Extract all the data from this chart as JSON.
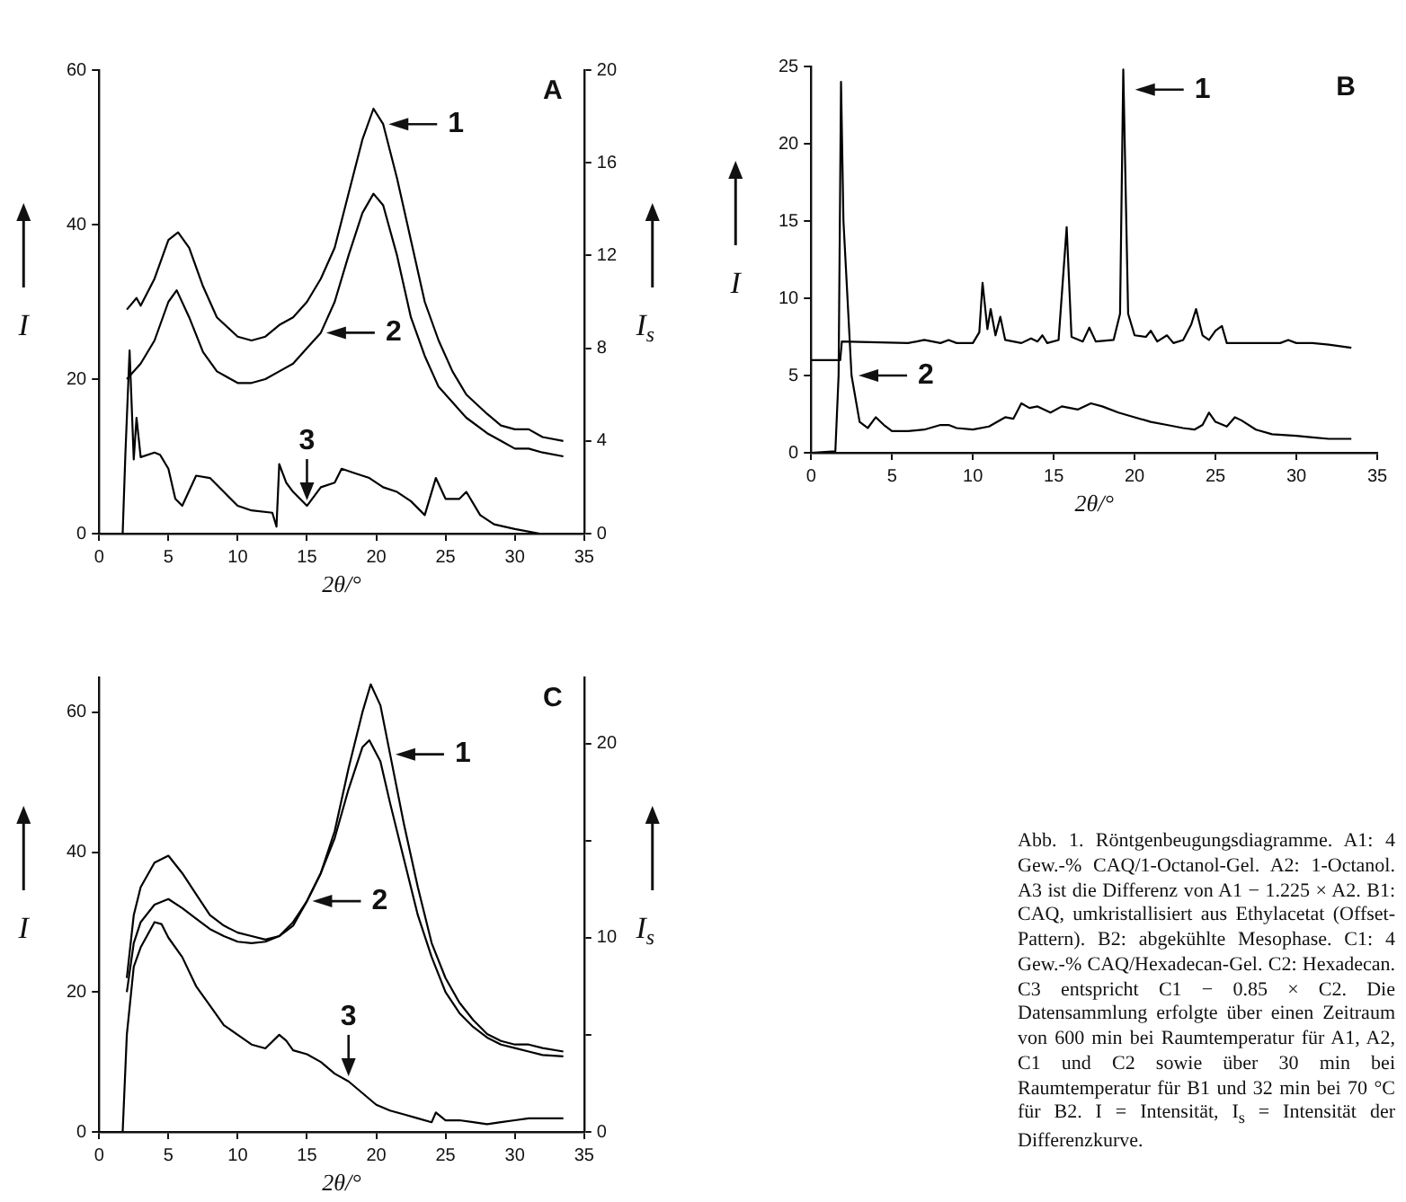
{
  "chart_data": [
    {
      "type": "line",
      "xlabel": "2θ/°",
      "ylabel": "I",
      "y2label": "I$_{s}$",
      "marker": "none",
      "xlim": [
        0,
        35
      ],
      "xticks": [
        0,
        5,
        10,
        15,
        20,
        25,
        30,
        35
      ],
      "ylim": [
        0,
        60
      ],
      "yticks": [
        0,
        20,
        40,
        60
      ],
      "y2lim": [
        0,
        20
      ],
      "y2ticks": [
        0,
        4,
        8,
        12,
        16,
        20
      ],
      "annotations": [
        "A",
        {
          "text": "1",
          "x": 20.5,
          "y": 53
        },
        {
          "text": "2",
          "x": 16,
          "y": 26
        },
        {
          "text": "3",
          "x": 15,
          "y": 3.6
        }
      ],
      "series": [
        {
          "color": "#000000",
          "x": [
            2,
            2.7,
            3,
            4,
            5,
            5.7,
            6.5,
            7.5,
            8.5,
            10,
            11,
            12,
            13,
            14,
            15,
            16,
            17,
            18,
            19,
            19.8,
            20.5,
            21.5,
            22.5,
            23.5,
            24.5,
            25.5,
            26.5,
            28,
            29,
            30,
            31,
            32,
            33.5
          ],
          "values": [
            29,
            30.5,
            29.5,
            33,
            38,
            39,
            37,
            32,
            28,
            25.5,
            25,
            25.5,
            27,
            28,
            30,
            33,
            37,
            44,
            51,
            55,
            53,
            46,
            38,
            30,
            25,
            21,
            18,
            15.5,
            14,
            13.5,
            13.5,
            12.5,
            12
          ]
        },
        {
          "color": "#000000",
          "x": [
            2,
            3,
            4,
            5,
            5.6,
            6.5,
            7.5,
            8.5,
            10,
            11,
            12,
            13,
            14,
            15,
            16,
            17,
            18,
            19,
            19.8,
            20.5,
            21.5,
            22.5,
            23.5,
            24.5,
            25.5,
            26.5,
            28,
            29,
            30,
            31,
            32,
            33.5
          ],
          "values": [
            20,
            22,
            25,
            30,
            31.5,
            28,
            23.5,
            21,
            19.5,
            19.5,
            20,
            21,
            22,
            24,
            26,
            30,
            36,
            41.5,
            44,
            42.5,
            36,
            28,
            23,
            19,
            17,
            15,
            13,
            12,
            11,
            11,
            10.5,
            10
          ]
        },
        {
          "color": "#000000",
          "axis": "y2",
          "x": [
            0,
            1.7,
            1.9,
            2.2,
            2.5,
            2.7,
            3,
            4,
            4.4,
            5,
            5.5,
            6,
            7,
            8,
            9,
            10,
            11,
            12.5,
            12.8,
            13,
            13.5,
            14,
            15,
            16,
            17,
            17.5,
            18.5,
            19.5,
            20.5,
            21.5,
            22.5,
            23.5,
            24.3,
            25,
            26,
            26.5,
            27.5,
            28.5,
            30,
            31.8
          ],
          "values": [
            0,
            0,
            3.5,
            7.9,
            3.2,
            5,
            3.3,
            3.5,
            3.4,
            2.8,
            1.5,
            1.2,
            2.5,
            2.4,
            1.8,
            1.2,
            1,
            0.9,
            0.3,
            3,
            2.2,
            1.8,
            1.2,
            2,
            2.2,
            2.8,
            2.6,
            2.4,
            2,
            1.8,
            1.4,
            0.8,
            2.4,
            1.5,
            1.5,
            1.8,
            0.8,
            0.4,
            0.2,
            0
          ]
        }
      ]
    },
    {
      "type": "line",
      "xlabel": "2θ/°",
      "ylabel": "I",
      "marker": "none",
      "xlim": [
        0,
        35
      ],
      "xticks": [
        0,
        5,
        10,
        15,
        20,
        25,
        30,
        35
      ],
      "ylim": [
        0,
        25
      ],
      "yticks": [
        0,
        5,
        10,
        15,
        20,
        25
      ],
      "annotations": [
        "B",
        {
          "text": "1",
          "x": 19.7,
          "y": 23.5
        },
        {
          "text": "2",
          "x": 2.6,
          "y": 5
        }
      ],
      "series": [
        {
          "color": "#000000",
          "x": [
            0,
            1.8,
            1.9,
            6,
            7,
            8,
            8.5,
            9,
            10,
            10.4,
            10.6,
            10.9,
            11.1,
            11.4,
            11.7,
            12,
            13,
            13.6,
            14,
            14.3,
            14.6,
            15.3,
            15.8,
            16.1,
            16.8,
            17.2,
            17.6,
            18.7,
            19.1,
            19.3,
            19.6,
            20,
            20.7,
            21,
            21.4,
            22,
            22.4,
            23,
            23.5,
            23.8,
            24.2,
            24.6,
            25,
            25.4,
            25.7,
            27,
            28,
            29,
            29.5,
            30,
            31,
            32,
            33.4
          ],
          "values": [
            6,
            6,
            7.2,
            7.1,
            7.3,
            7.1,
            7.3,
            7.1,
            7.1,
            7.8,
            11,
            8,
            9.3,
            7.6,
            8.8,
            7.3,
            7.1,
            7.4,
            7.2,
            7.6,
            7.1,
            7.3,
            14.6,
            7.5,
            7.2,
            8.1,
            7.2,
            7.3,
            9,
            24.8,
            9,
            7.6,
            7.5,
            7.9,
            7.2,
            7.6,
            7.1,
            7.3,
            8.3,
            9.3,
            7.6,
            7.3,
            7.9,
            8.2,
            7.1,
            7.1,
            7.1,
            7.1,
            7.3,
            7.1,
            7.1,
            7,
            6.8
          ]
        },
        {
          "color": "#000000",
          "x": [
            0,
            1.5,
            1.7,
            1.85,
            2,
            2.5,
            3,
            3.5,
            4,
            4.5,
            5,
            6,
            7,
            8,
            8.5,
            9,
            10,
            11,
            12,
            12.5,
            13,
            13.5,
            14,
            14.8,
            15.5,
            16.5,
            17.3,
            18,
            19,
            20,
            21,
            22,
            23,
            23.7,
            24.2,
            24.6,
            25,
            25.7,
            26.2,
            26.6,
            27.5,
            28.5,
            30,
            31,
            32,
            33.4
          ],
          "values": [
            0,
            0.1,
            5,
            24,
            15,
            5,
            2,
            1.6,
            2.3,
            1.8,
            1.4,
            1.4,
            1.5,
            1.8,
            1.8,
            1.6,
            1.5,
            1.7,
            2.3,
            2.2,
            3.2,
            2.9,
            3,
            2.6,
            3,
            2.8,
            3.2,
            3,
            2.6,
            2.3,
            2,
            1.8,
            1.6,
            1.5,
            1.8,
            2.6,
            2,
            1.7,
            2.3,
            2.1,
            1.5,
            1.2,
            1.1,
            1,
            0.9,
            0.9
          ]
        }
      ]
    },
    {
      "type": "line",
      "xlabel": "2θ/°",
      "ylabel": "I",
      "y2label": "I$_{s}$",
      "marker": "none",
      "xlim": [
        0,
        35
      ],
      "xticks": [
        0,
        5,
        10,
        15,
        20,
        25,
        30,
        35
      ],
      "ylim": [
        0,
        65
      ],
      "yticks": [
        0,
        20,
        40,
        60
      ],
      "y2lim": [
        0,
        23.4
      ],
      "y2ticks": [
        0,
        {
          "value": 5,
          "label": null
        },
        10,
        {
          "value": 15,
          "label": null
        },
        20
      ],
      "annotations": [
        "C",
        {
          "text": "1",
          "x": 21,
          "y": 54
        },
        {
          "text": "2",
          "x": 15,
          "y": 33
        },
        {
          "text": "3",
          "x": 18,
          "y": 7.2
        }
      ],
      "series": [
        {
          "color": "#000000",
          "x": [
            2,
            2.5,
            3,
            4,
            5,
            6,
            7,
            8,
            9,
            10,
            11,
            12,
            13,
            14,
            15,
            16,
            17,
            18,
            19,
            19.6,
            20.3,
            21,
            22,
            23,
            24,
            25,
            26,
            27,
            28,
            29,
            30,
            31,
            32,
            33.5
          ],
          "values": [
            22,
            31,
            35,
            38.5,
            39.5,
            37,
            34,
            31,
            29.5,
            28.5,
            28,
            27.5,
            28,
            30,
            33,
            37,
            43,
            52,
            60,
            64,
            61,
            54,
            44,
            35,
            27,
            22,
            18.5,
            16,
            14,
            13,
            12.5,
            12.5,
            12,
            11.5
          ]
        },
        {
          "color": "#000000",
          "x": [
            2,
            2.5,
            3,
            4,
            5,
            6,
            7,
            8,
            9,
            10,
            11,
            12,
            13,
            14,
            15,
            16,
            17,
            18,
            19,
            19.5,
            20.3,
            21,
            22,
            23,
            24,
            25,
            26,
            27,
            28,
            29,
            30,
            31,
            32,
            33.5
          ],
          "values": [
            20,
            27,
            30,
            32.5,
            33.3,
            32,
            30.5,
            29,
            28,
            27.2,
            27,
            27.2,
            28,
            29.5,
            33,
            37,
            42,
            49,
            55,
            56,
            53,
            47,
            39,
            31,
            25,
            20,
            17,
            15,
            13.5,
            12.5,
            12,
            11.5,
            11,
            10.8
          ]
        },
        {
          "color": "#000000",
          "axis": "y2",
          "x": [
            0,
            1.7,
            2,
            2.5,
            3,
            4,
            4.5,
            5,
            6,
            7,
            8,
            9,
            10,
            11,
            12,
            13,
            13.5,
            14,
            15,
            16,
            17,
            18,
            19,
            20,
            21,
            22,
            23,
            24,
            24.3,
            25,
            26,
            27,
            28,
            29,
            30,
            31,
            32,
            33.5
          ],
          "values": [
            0,
            0,
            5,
            8.5,
            9.5,
            10.8,
            10.7,
            10,
            9,
            7.5,
            6.5,
            5.5,
            5,
            4.5,
            4.3,
            5,
            4.7,
            4.2,
            4,
            3.6,
            3,
            2.6,
            2,
            1.4,
            1.1,
            0.9,
            0.7,
            0.5,
            1,
            0.6,
            0.6,
            0.5,
            0.4,
            0.5,
            0.6,
            0.7,
            0.7,
            0.7
          ]
        }
      ]
    },
    {
      "type": "other",
      "annotations": [
        "Abb. 1. Röntgenbeugungsdiagramme. A1: 4 Gew.-% CAQ/1-Octanol-Gel. A2: 1-Octanol. A3 ist die Differenz von A1 − 1.225 × A2. B1: CAQ, umkristallisiert aus Ethylacetat (Offset-Pattern). B2: abgekühlte Mesophase. C1: 4 Gew.-% CAQ/Hexadecan-Gel. C2: Hexadecan. C3 entspricht C1 − 0.85 × C2. Die Datensammlung erfolgte über einen Zeitraum von 600 min bei Raumtemperatur für A1, A2, C1 und C2 sowie über 30 min bei Raumtemperatur für B1 und 32 min bei 70 °C für B2. I = Intensität, I$_{s}$ = Intensität der Differenzkurve."
      ]
    }
  ]
}
